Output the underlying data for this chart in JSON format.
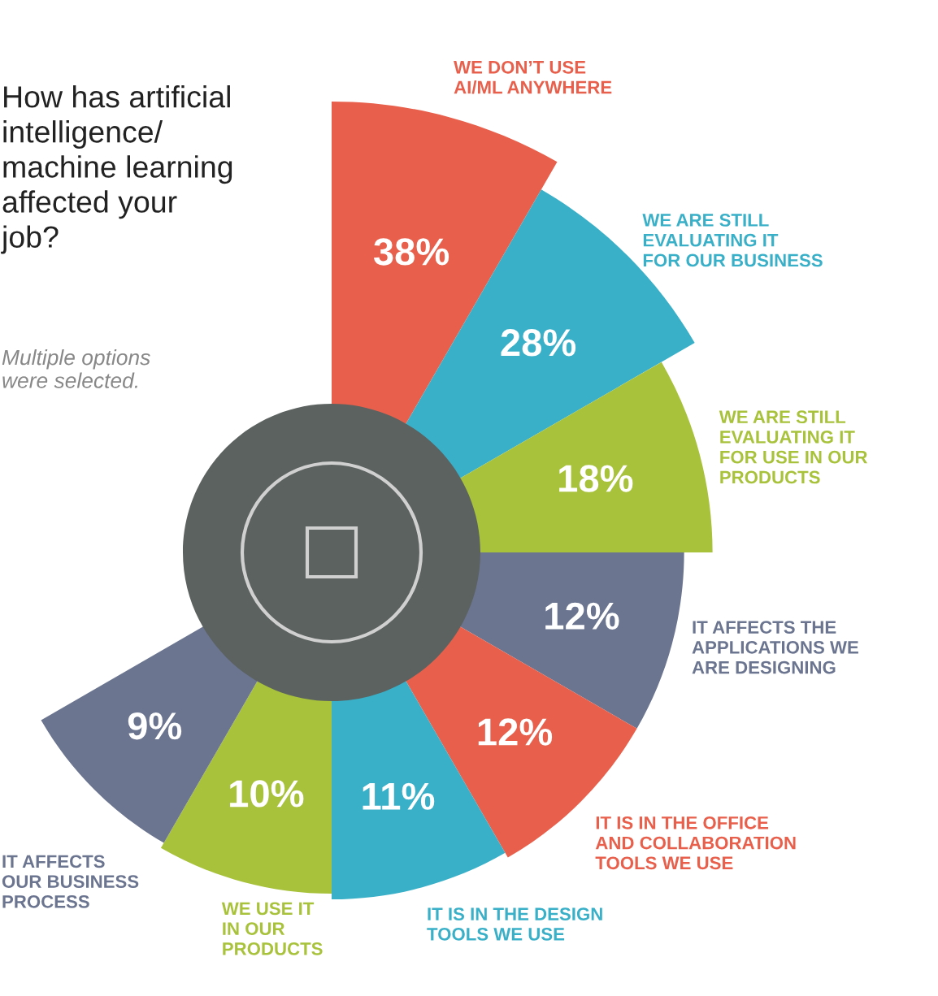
{
  "chart_data": {
    "type": "other",
    "title": "How has artificial\nintelligence/\nmachine learning\naffected your\njob?",
    "subtitle": "Multiple options\nwere selected.",
    "categories": [
      "WE DON’T USE\nAI/ML ANYWHERE",
      "WE ARE STILL\nEVALUATING IT\nFOR OUR BUSINESS",
      "WE ARE STILL\nEVALUATING IT\nFOR USE IN OUR\nPRODUCTS",
      "IT AFFECTS THE\nAPPLICATIONS WE\nARE DESIGNING",
      "IT IS IN THE OFFICE\nAND COLLABORATION\nTOOLS WE USE",
      "IT IS IN THE DESIGN\nTOOLS WE USE",
      "WE USE IT\nIN OUR\nPRODUCTS",
      "IT AFFECTS\nOUR BUSINESS\nPROCESS"
    ],
    "values": [
      38,
      28,
      18,
      12,
      12,
      11,
      10,
      9
    ],
    "colors": [
      "#e8604c",
      "#3ab0c8",
      "#a8c23c",
      "#6b7590",
      "#e8604c",
      "#3ab0c8",
      "#a8c23c",
      "#6b7590"
    ],
    "value_labels": [
      "38%",
      "28%",
      "18%",
      "12%",
      "12%",
      "11%",
      "10%",
      "9%"
    ]
  }
}
